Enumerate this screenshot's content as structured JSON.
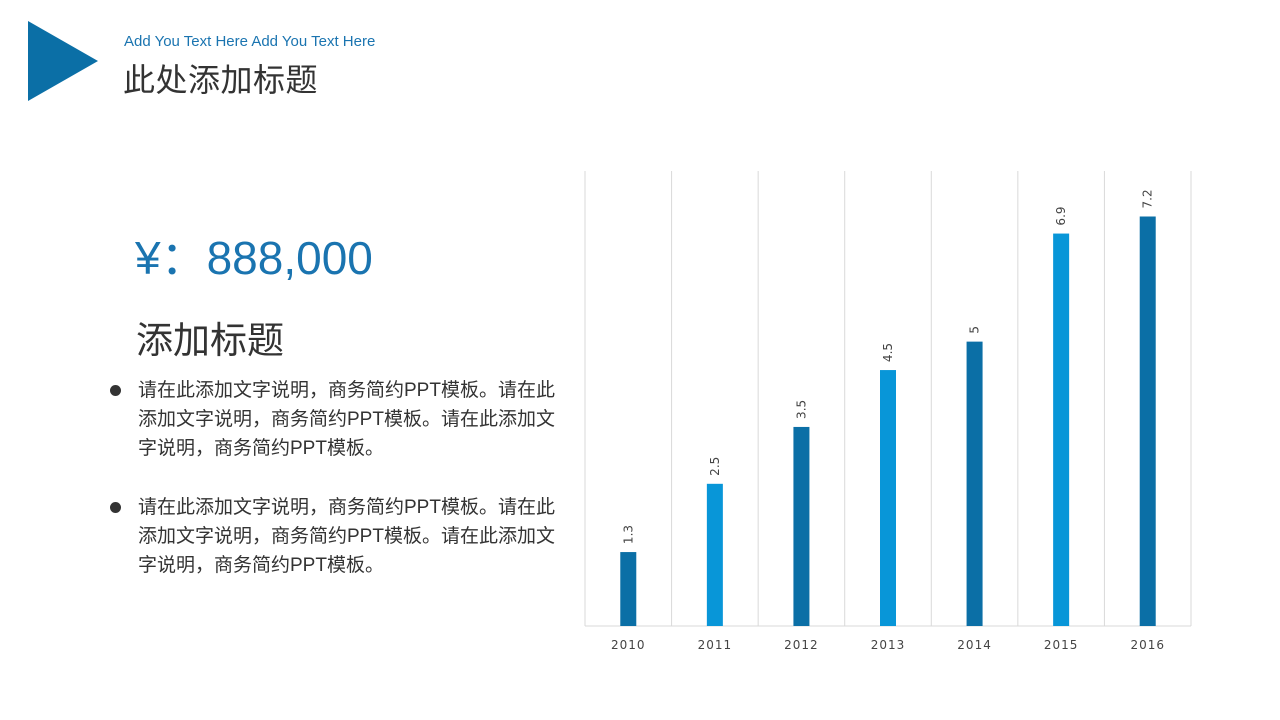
{
  "header": {
    "subtitle": "Add You Text Here Add You Text Here",
    "title": "此处添加标题"
  },
  "left": {
    "price": "¥：888,000",
    "section_title": "添加标题",
    "bullets": [
      "请在此添加文字说明，商务简约PPT模板。请在此添加文字说明，商务简约PPT模板。请在此添加文字说明，商务简约PPT模板。",
      "请在此添加文字说明，商务简约PPT模板。请在此添加文字说明，商务简约PPT模板。请在此添加文字说明，商务简约PPT模板。"
    ]
  },
  "colors": {
    "dark_bar": "#0b6fa6",
    "light_bar": "#0896d8",
    "accent_text": "#1a74b0",
    "grid": "#d9d9d9"
  },
  "chart_data": {
    "type": "bar",
    "categories": [
      "2010",
      "2011",
      "2012",
      "2013",
      "2014",
      "2015",
      "2016"
    ],
    "values": [
      1.3,
      2.5,
      3.5,
      4.5,
      5,
      6.9,
      7.2
    ],
    "data_labels": [
      "1.3",
      "2.5",
      "3.5",
      "4.5",
      "5",
      "6.9",
      "7.2"
    ],
    "ylim": [
      0,
      8
    ],
    "grid": "vertical",
    "data_labels_rotated": true,
    "title": "",
    "xlabel": "",
    "ylabel": ""
  }
}
